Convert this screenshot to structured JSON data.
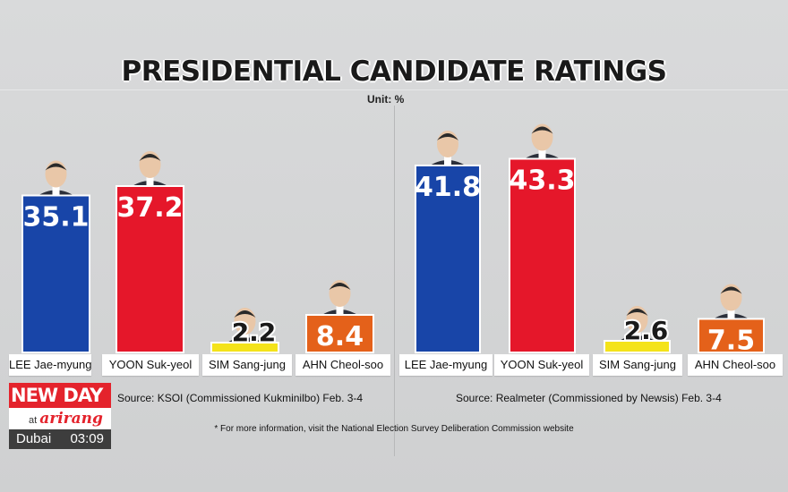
{
  "title": "PRESIDENTIAL CANDIDATE RATINGS",
  "unit": "Unit: %",
  "colors": {
    "lee": "#1845a8",
    "yoon": "#e5172a",
    "sim": "#f4e31a",
    "ahn": "#e4611a"
  },
  "chart_data": [
    {
      "type": "bar",
      "categories": [
        "LEE Jae-myung",
        "YOON Suk-yeol",
        "SIM Sang-jung",
        "AHN Cheol-soo"
      ],
      "values": [
        35.1,
        37.2,
        2.2,
        8.4
      ],
      "data_labels": [
        "35.1",
        "37.2",
        "2.2",
        "8.4"
      ],
      "source": "Source: KSOI (Commissioned Kukminilbo) Feb. 3-4"
    },
    {
      "type": "bar",
      "categories": [
        "LEE Jae-myung",
        "YOON Suk-yeol",
        "SIM Sang-jung",
        "AHN Cheol-soo"
      ],
      "values": [
        41.8,
        43.3,
        2.6,
        7.5
      ],
      "data_labels": [
        "41.8",
        "43.3",
        "2.6",
        "7.5"
      ],
      "source": "Source: Realmeter (Commissioned by Newsis) Feb. 3-4"
    }
  ],
  "footnote": "* For more information, visit the National Election Survey Deliberation Commission website",
  "logo": {
    "new": "NEW",
    "day": "DAY",
    "at": "at",
    "brand": "arirang",
    "city": "Dubai",
    "time": "03:09"
  }
}
